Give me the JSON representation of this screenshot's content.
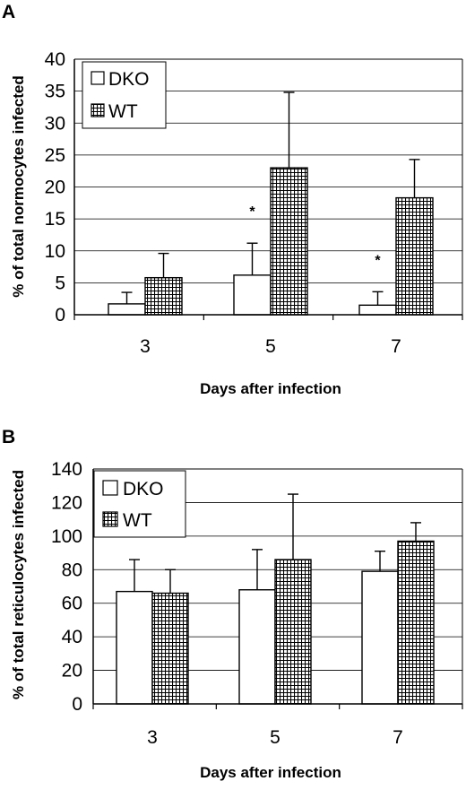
{
  "chart_data": [
    {
      "panel": "A",
      "type": "bar",
      "categories": [
        "3",
        "5",
        "7"
      ],
      "series": [
        {
          "name": "DKO",
          "values": [
            1.7,
            6.2,
            1.5
          ],
          "errors": [
            1.8,
            5.0,
            2.1
          ],
          "pattern": "white"
        },
        {
          "name": "WT",
          "values": [
            5.8,
            23.0,
            18.3
          ],
          "errors": [
            3.8,
            11.8,
            6.0
          ],
          "pattern": "crosshatch"
        }
      ],
      "significance": [
        "",
        "*",
        "*"
      ],
      "xlabel": "Days after infection",
      "ylabel": "% of total normocytes infected",
      "ylim": [
        0,
        40
      ],
      "yticks": [
        "0",
        "5",
        "10",
        "15",
        "20",
        "25",
        "30",
        "35",
        "40"
      ],
      "grid": true,
      "legend": "top-left"
    },
    {
      "panel": "B",
      "type": "bar",
      "categories": [
        "3",
        "5",
        "7"
      ],
      "series": [
        {
          "name": "DKO",
          "values": [
            67,
            68,
            79
          ],
          "errors": [
            19,
            24,
            12
          ],
          "pattern": "white"
        },
        {
          "name": "WT",
          "values": [
            66,
            86,
            97
          ],
          "errors": [
            14,
            39,
            11
          ],
          "pattern": "crosshatch"
        }
      ],
      "significance": [
        "",
        "",
        ""
      ],
      "xlabel": "Days after infection",
      "ylabel": "% of total reticulocytes infected",
      "ylim": [
        0,
        140
      ],
      "yticks": [
        "0",
        "20",
        "40",
        "60",
        "80",
        "100",
        "120",
        "140"
      ],
      "grid": true,
      "legend": "top-left"
    }
  ]
}
